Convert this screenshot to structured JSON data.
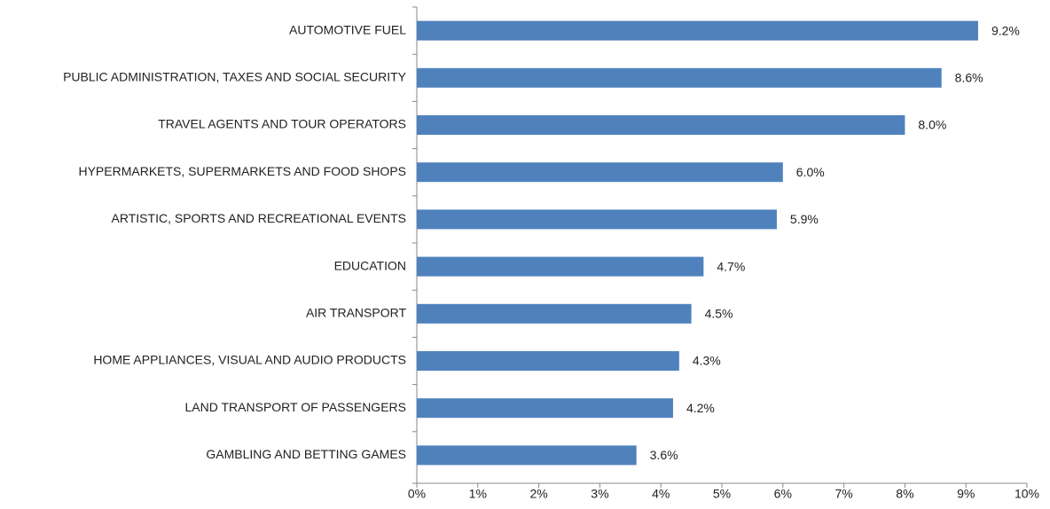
{
  "chart_data": {
    "type": "bar",
    "orientation": "horizontal",
    "categories": [
      "AUTOMOTIVE FUEL",
      "PUBLIC ADMINISTRATION, TAXES AND SOCIAL SECURITY",
      "TRAVEL AGENTS AND TOUR OPERATORS",
      "HYPERMARKETS, SUPERMARKETS AND FOOD SHOPS",
      "ARTISTIC, SPORTS AND RECREATIONAL EVENTS",
      "EDUCATION",
      "AIR TRANSPORT",
      "HOME APPLIANCES, VISUAL AND AUDIO PRODUCTS",
      "LAND TRANSPORT OF PASSENGERS",
      "GAMBLING AND BETTING GAMES"
    ],
    "values": [
      9.2,
      8.6,
      8.0,
      6.0,
      5.9,
      4.7,
      4.5,
      4.3,
      4.2,
      3.6
    ],
    "value_labels": [
      "9.2%",
      "8.6%",
      "8.0%",
      "6.0%",
      "5.9%",
      "4.7%",
      "4.5%",
      "4.3%",
      "4.2%",
      "3.6%"
    ],
    "color": "#4f81bd",
    "xlim": [
      0,
      10
    ],
    "xticks": [
      {
        "value": 0,
        "label": "0%"
      },
      {
        "value": 1,
        "label": "1%"
      },
      {
        "value": 2,
        "label": "2%"
      },
      {
        "value": 3,
        "label": "3%"
      },
      {
        "value": 4,
        "label": "4%"
      },
      {
        "value": 5,
        "label": "5%"
      },
      {
        "value": 6,
        "label": "6%"
      },
      {
        "value": 7,
        "label": "7%"
      },
      {
        "value": 8,
        "label": "8%"
      },
      {
        "value": 9,
        "label": "9%"
      },
      {
        "value": 10,
        "label": "10%"
      }
    ],
    "grid": false
  }
}
